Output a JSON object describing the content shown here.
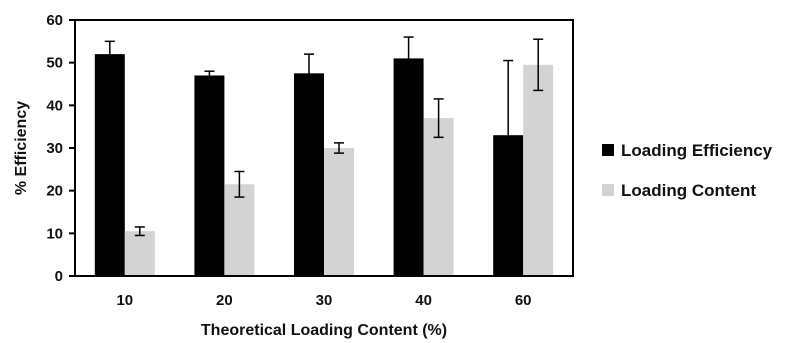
{
  "chart_data": {
    "type": "bar",
    "title": "",
    "xlabel": "Theoretical Loading Content (%)",
    "ylabel": "% Efficiency",
    "categories": [
      "10",
      "20",
      "30",
      "40",
      "60"
    ],
    "ylim": [
      0,
      60
    ],
    "yticks": [
      "0",
      "10",
      "20",
      "30",
      "40",
      "50",
      "60"
    ],
    "grid": false,
    "legend_position": "right",
    "series": [
      {
        "name": "Loading Efficiency",
        "color": "#000000",
        "values": [
          52,
          47,
          47.5,
          51,
          33
        ],
        "errors": [
          3,
          1,
          4.5,
          5,
          17.5
        ]
      },
      {
        "name": "Loading Content",
        "color": "#d3d3d3",
        "values": [
          10.5,
          21.5,
          30,
          37,
          49.5
        ],
        "errors": [
          1,
          3,
          1.2,
          4.5,
          6
        ]
      }
    ]
  }
}
